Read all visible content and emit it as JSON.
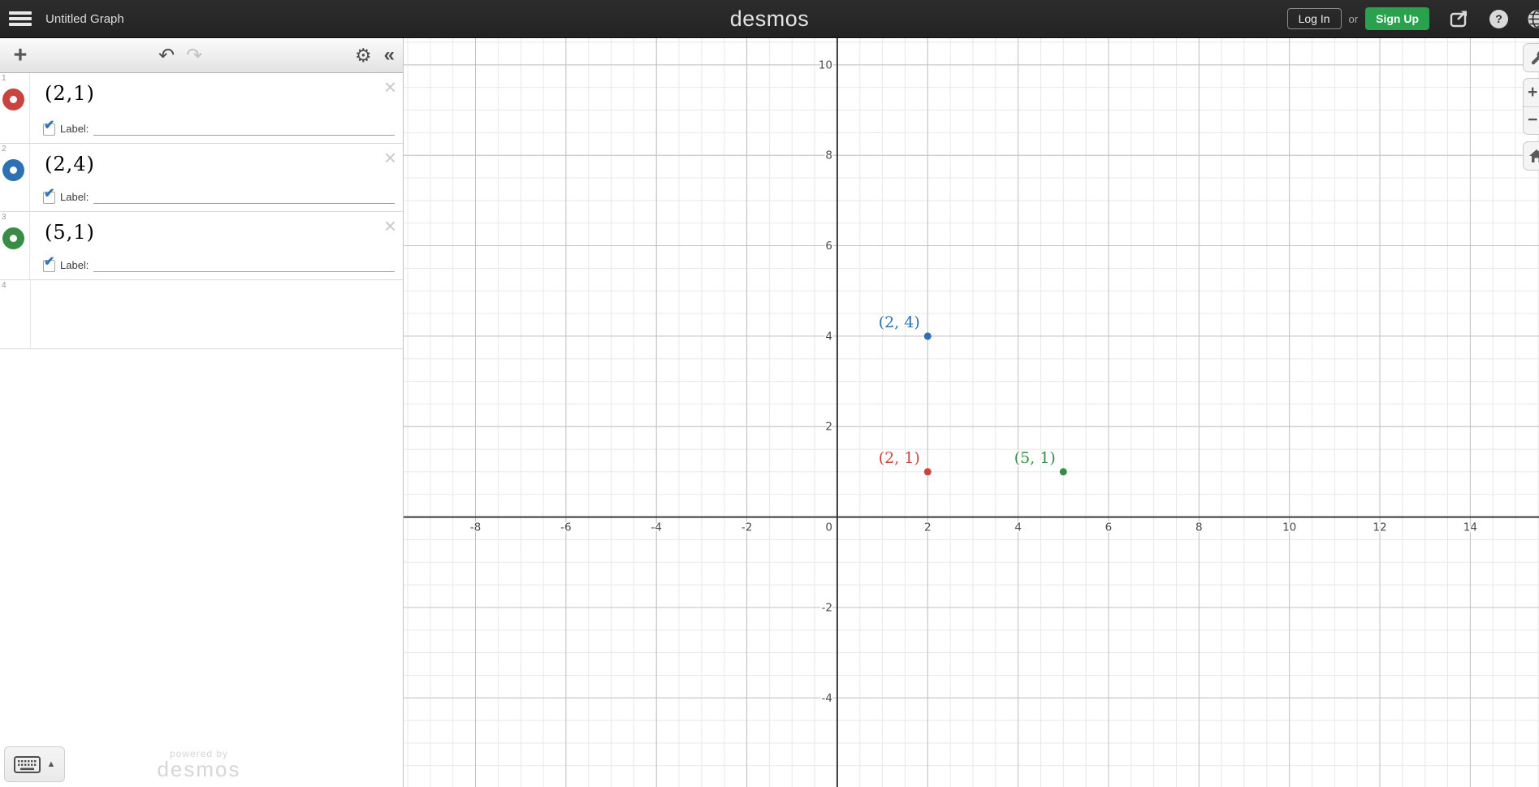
{
  "header": {
    "title": "Untitled Graph",
    "logo": "desmos",
    "login_label": "Log In",
    "or_label": "or",
    "signup_label": "Sign Up",
    "help_glyph": "?"
  },
  "panel_toolbar": {
    "add_glyph": "+",
    "undo_glyph": "↶",
    "redo_glyph": "↷",
    "gear_glyph": "⚙",
    "collapse_glyph": "«"
  },
  "expressions": {
    "label_caption": "Label:",
    "check_glyph": "✔",
    "close_glyph": "×",
    "next_index": "4",
    "rows": [
      {
        "index": "1",
        "latex": "(2,1)",
        "color": "#c74440",
        "label_value": ""
      },
      {
        "index": "2",
        "latex": "(2,4)",
        "color": "#2d70b3",
        "label_value": ""
      },
      {
        "index": "3",
        "latex": "(5,1)",
        "color": "#388c46",
        "label_value": ""
      }
    ]
  },
  "footer": {
    "watermark_top": "powered by",
    "watermark_bottom": "desmos",
    "keyboard_caret": "▲"
  },
  "graph_controls": {
    "zoom_in_glyph": "+",
    "zoom_out_glyph": "−"
  },
  "colors": {
    "red": "#c74440",
    "blue": "#2d70b3",
    "green": "#388c46",
    "signup_green": "#2aa14c",
    "axis": "#3a3a3a",
    "major_grid": "#c2c2c2",
    "minor_grid": "#e8e8e8"
  },
  "chart_data": {
    "type": "scatter",
    "title": "",
    "points": [
      {
        "x": 2,
        "y": 1,
        "label": "(2, 1)",
        "color": "#c74440"
      },
      {
        "x": 2,
        "y": 4,
        "label": "(2, 4)",
        "color": "#2d70b3"
      },
      {
        "x": 5,
        "y": 1,
        "label": "(5, 1)",
        "color": "#388c46"
      }
    ],
    "x_ticks": [
      -8,
      -6,
      -4,
      -2,
      0,
      2,
      4,
      6,
      8,
      10,
      12,
      14
    ],
    "y_ticks": [
      -4,
      -2,
      2,
      4,
      6,
      8,
      10
    ],
    "xlim": [
      -9.59,
      15.52
    ],
    "ylim": [
      -5.97,
      10.59
    ],
    "major_step": 2,
    "minor_step": 0.5,
    "grid": true,
    "legend": false
  }
}
